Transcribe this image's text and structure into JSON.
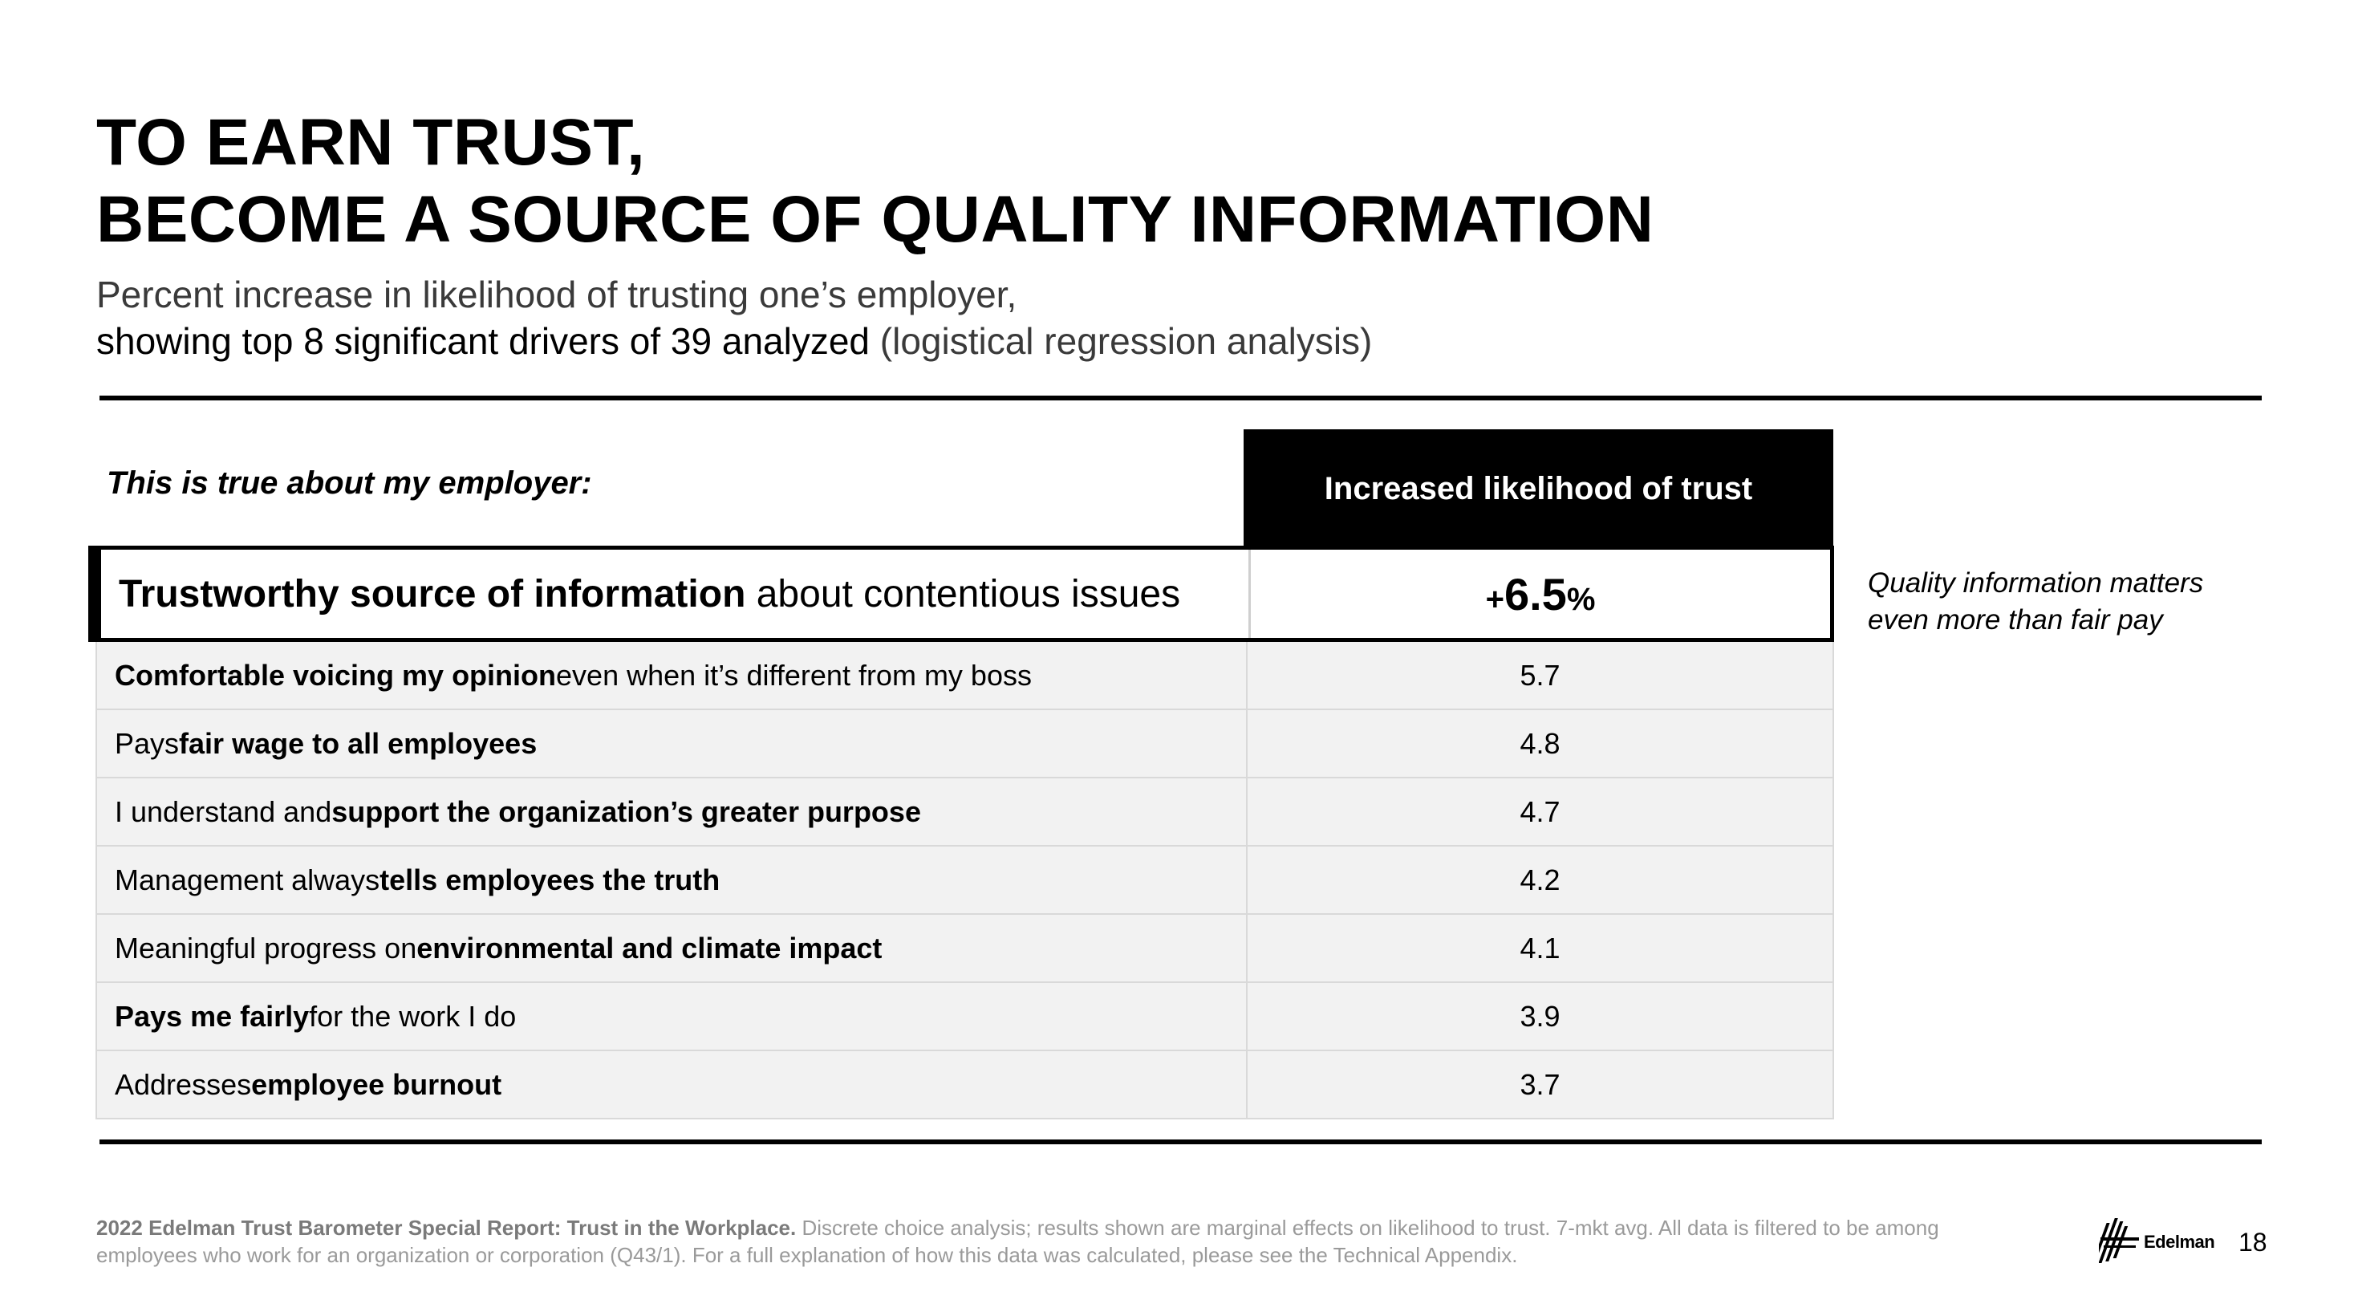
{
  "title": {
    "line1": "TO EARN TRUST,",
    "line2": "BECOME A SOURCE OF QUALITY INFORMATION"
  },
  "subtitle": {
    "line1": "Percent increase in likelihood of trusting one’s employer,",
    "line2_dark": "showing top 8 significant drivers of 39 analyzed",
    "line2_light": " (logistical regression analysis)"
  },
  "table": {
    "left_header": "This is true about my employer:",
    "right_header": "Increased likelihood of trust",
    "highlight": {
      "bold": "Trustworthy source of information",
      "rest": " about contentious issues",
      "prefix": "+",
      "value": "6.5",
      "suffix": "%"
    },
    "rows": [
      {
        "pre": "",
        "bold": "Comfortable voicing my opinion",
        "post": " even when it’s different from my boss",
        "value": "5.7"
      },
      {
        "pre": "Pays ",
        "bold": "fair wage to all employees",
        "post": "",
        "value": "4.8"
      },
      {
        "pre": "I understand and ",
        "bold": "support the organization’s greater purpose",
        "post": "",
        "value": "4.7"
      },
      {
        "pre": "Management always ",
        "bold": "tells employees the truth",
        "post": "",
        "value": "4.2"
      },
      {
        "pre": "Meaningful progress on ",
        "bold": "environmental and climate impact",
        "post": "",
        "value": "4.1"
      },
      {
        "pre": "",
        "bold": "Pays me fairly",
        "post": " for the work I do",
        "value": "3.9"
      },
      {
        "pre": "Addresses ",
        "bold": "employee burnout",
        "post": "",
        "value": "3.7"
      }
    ]
  },
  "annotation": {
    "line1": "Quality information matters",
    "line2": "even more than fair pay"
  },
  "footnote": {
    "bold": "2022 Edelman Trust Barometer Special Report: Trust in the Workplace.",
    "text": " Discrete choice analysis; results shown are marginal effects on likelihood to trust. 7-mkt avg. All data is filtered to be among employees who work for an organization or corporation (Q43/1). For a full explanation of how this data was calculated, please see the Technical Appendix."
  },
  "logo_text": "Edelman",
  "page_number": "18"
}
